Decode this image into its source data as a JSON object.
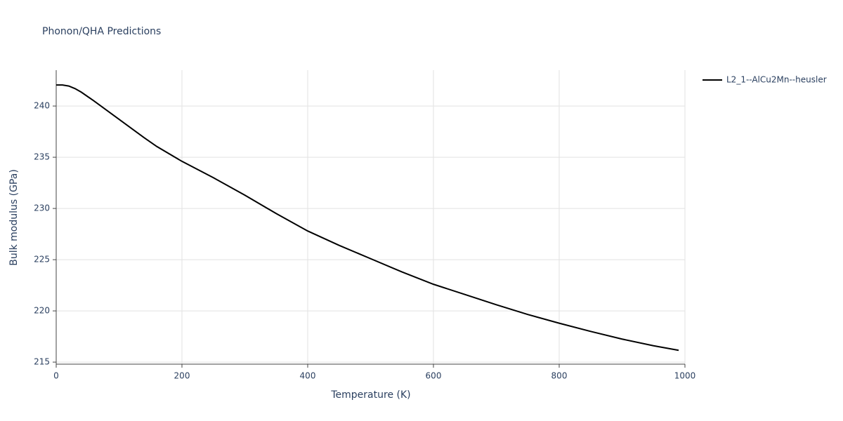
{
  "chart_data": {
    "type": "line",
    "title": "Phonon/QHA Predictions",
    "x_label": "Temperature (K)",
    "y_label": "Bulk modulus (GPa)",
    "x": [
      0,
      10,
      20,
      30,
      40,
      60,
      80,
      100,
      120,
      140,
      160,
      200,
      250,
      300,
      350,
      400,
      450,
      500,
      550,
      600,
      650,
      700,
      750,
      800,
      850,
      900,
      950,
      990
    ],
    "series": [
      {
        "name": "L2_1--AlCu2Mn--heusler",
        "color": "#000000",
        "values": [
          242.05,
          242.05,
          241.95,
          241.7,
          241.35,
          240.5,
          239.6,
          238.7,
          237.8,
          236.9,
          236.05,
          234.6,
          233.0,
          231.3,
          229.5,
          227.8,
          226.4,
          225.1,
          223.8,
          222.6,
          221.6,
          220.6,
          219.65,
          218.8,
          218.0,
          217.25,
          216.6,
          216.15
        ]
      }
    ],
    "xlim": [
      0,
      1000
    ],
    "ylim": [
      214.8,
      243.5
    ],
    "xticks": [
      0,
      200,
      400,
      600,
      800,
      1000
    ],
    "yticks": [
      215,
      220,
      225,
      230,
      235,
      240
    ],
    "grid": true,
    "legend": "right"
  }
}
